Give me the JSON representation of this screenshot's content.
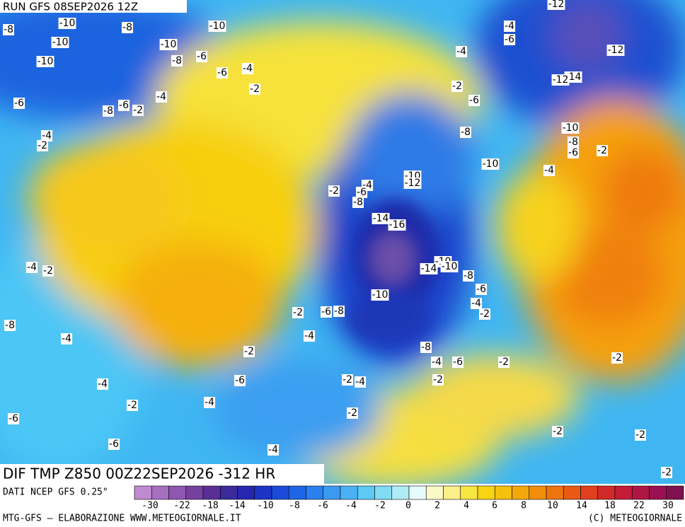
{
  "header": {
    "run": "RUN GFS 08SEP2026 12Z",
    "title": "DIF TMP Z850 00Z22SEP2026 -312 HR"
  },
  "map": {
    "labels": [
      -12,
      -8,
      -10,
      -8,
      -10,
      -4,
      -6,
      -10,
      -10,
      -6,
      -8,
      -4,
      -12,
      -10,
      -6,
      -4,
      -2,
      -2,
      -14,
      -12,
      -4,
      -6,
      -6,
      -6,
      -2,
      -8,
      -4,
      -2,
      -8,
      -10,
      -8,
      -6,
      -2,
      -10,
      -4,
      -10,
      -12,
      -4,
      -2,
      -6,
      -8,
      -14,
      -16,
      -4,
      -2,
      -10,
      -14,
      -10,
      -8,
      -6,
      -10,
      -4,
      -2,
      -2,
      -6,
      -8,
      -8,
      -4,
      -4,
      -8,
      -2,
      -4,
      -6,
      -2,
      -2,
      -2,
      -6,
      -2,
      -4,
      -4,
      -2,
      -4,
      -2,
      -6,
      -2,
      -2,
      -6,
      -4,
      -2
    ]
  },
  "colorbar": {
    "labels": [
      -30,
      -22,
      -18,
      -14,
      -10,
      -8,
      -6,
      -4,
      -2,
      0,
      2,
      4,
      6,
      8,
      10,
      14,
      18,
      22,
      30
    ]
  },
  "footer": {
    "source": "DATI NCEP GFS 0.25°",
    "credit": "MTG-GFS — ELABORAZIONE WWW.METEOGIORNALE.IT",
    "copyright": "(C) METEOGIORNALE"
  }
}
